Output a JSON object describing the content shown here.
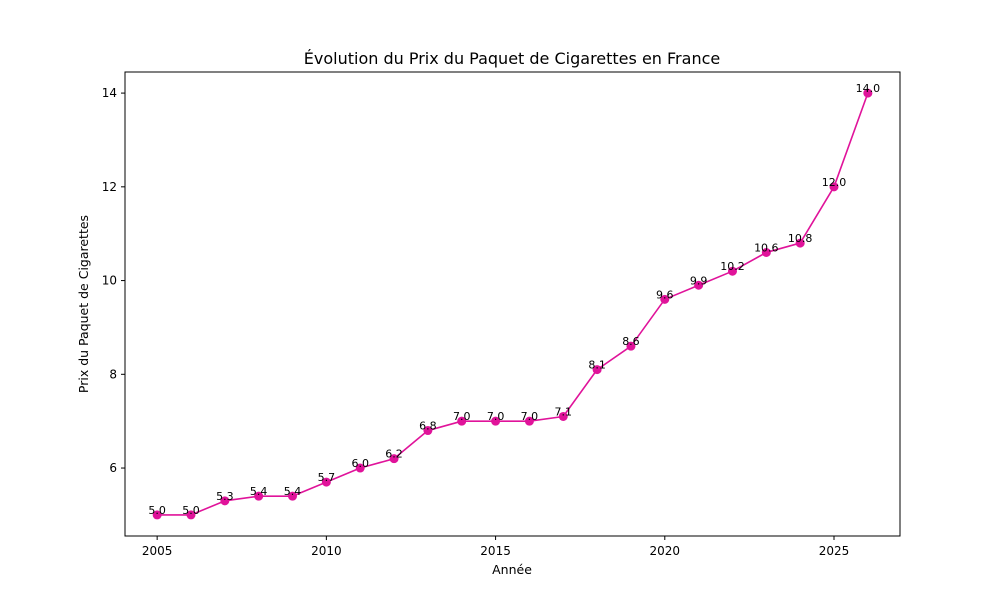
{
  "chart_data": {
    "type": "line",
    "title": "Évolution du Prix du Paquet de Cigarettes en France",
    "xlabel": "Année",
    "ylabel": "Prix du Paquet de Cigarettes",
    "x": [
      2005,
      2006,
      2007,
      2008,
      2009,
      2010,
      2011,
      2012,
      2013,
      2014,
      2015,
      2016,
      2017,
      2018,
      2019,
      2020,
      2021,
      2022,
      2023,
      2024,
      2025,
      2026
    ],
    "series": [
      {
        "values": [
          5.0,
          5.0,
          5.3,
          5.4,
          5.4,
          5.7,
          6.0,
          6.2,
          6.8,
          7.0,
          7.0,
          7.0,
          7.1,
          8.1,
          8.6,
          9.6,
          9.9,
          10.2,
          10.6,
          10.8,
          12.0,
          14.0
        ],
        "data_labels": [
          "5.0",
          "5.0",
          "5.3",
          "5.4",
          "5.4",
          "5.7",
          "6.0",
          "6.2",
          "6.8",
          "7.0",
          "7.0",
          "7.0",
          "7.1",
          "8.1",
          "8.6",
          "9.6",
          "9.9",
          "10.2",
          "10.6",
          "10.8",
          "12.0",
          "14.0"
        ],
        "color": "#e0139a",
        "marker": "circle"
      }
    ],
    "xlim": [
      2004.05,
      2026.95
    ],
    "ylim": [
      4.55,
      14.45
    ],
    "x_ticks": [
      2005,
      2010,
      2015,
      2020,
      2025
    ],
    "x_tick_labels": [
      "2005",
      "2010",
      "2015",
      "2020",
      "2025"
    ],
    "y_ticks": [
      6,
      8,
      10,
      12,
      14
    ],
    "y_tick_labels": [
      "6",
      "8",
      "10",
      "12",
      "14"
    ],
    "grid": false,
    "legend": "none"
  }
}
